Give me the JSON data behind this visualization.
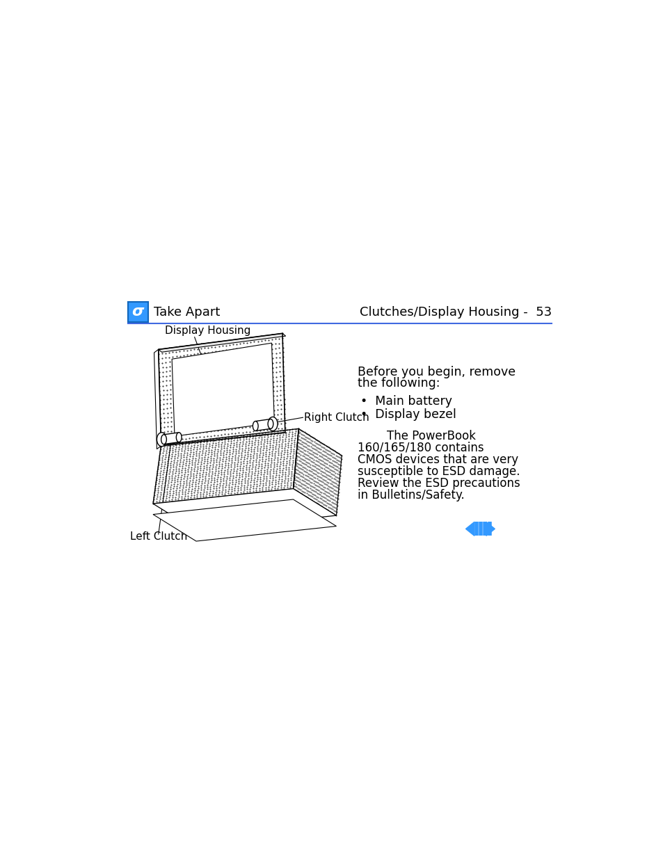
{
  "bg_color": "#ffffff",
  "header_left": "Take Apart",
  "header_right": "Clutches/Display Housing -  53",
  "header_line_color": "#4169E1",
  "header_icon_bg": "#3399FF",
  "header_icon_text": "σ",
  "label_display_housing": "Display Housing",
  "label_right_clutch": "Right Clutch",
  "label_left_clutch": "Left Clutch",
  "bullet1": "Main battery",
  "bullet2": "Display bezel",
  "text_warning_line1": "        The PowerBook",
  "text_warning_line2": "160/165/180 contains",
  "text_warning_line3": "CMOS devices that are very",
  "text_warning_line4": "susceptible to ESD damage.",
  "text_warning_line5": "Review the ESD precautions",
  "text_warning_line6": "in Bulletins/Safety.",
  "nav_color": "#3399FF",
  "page_width": 9.54,
  "page_height": 12.35
}
